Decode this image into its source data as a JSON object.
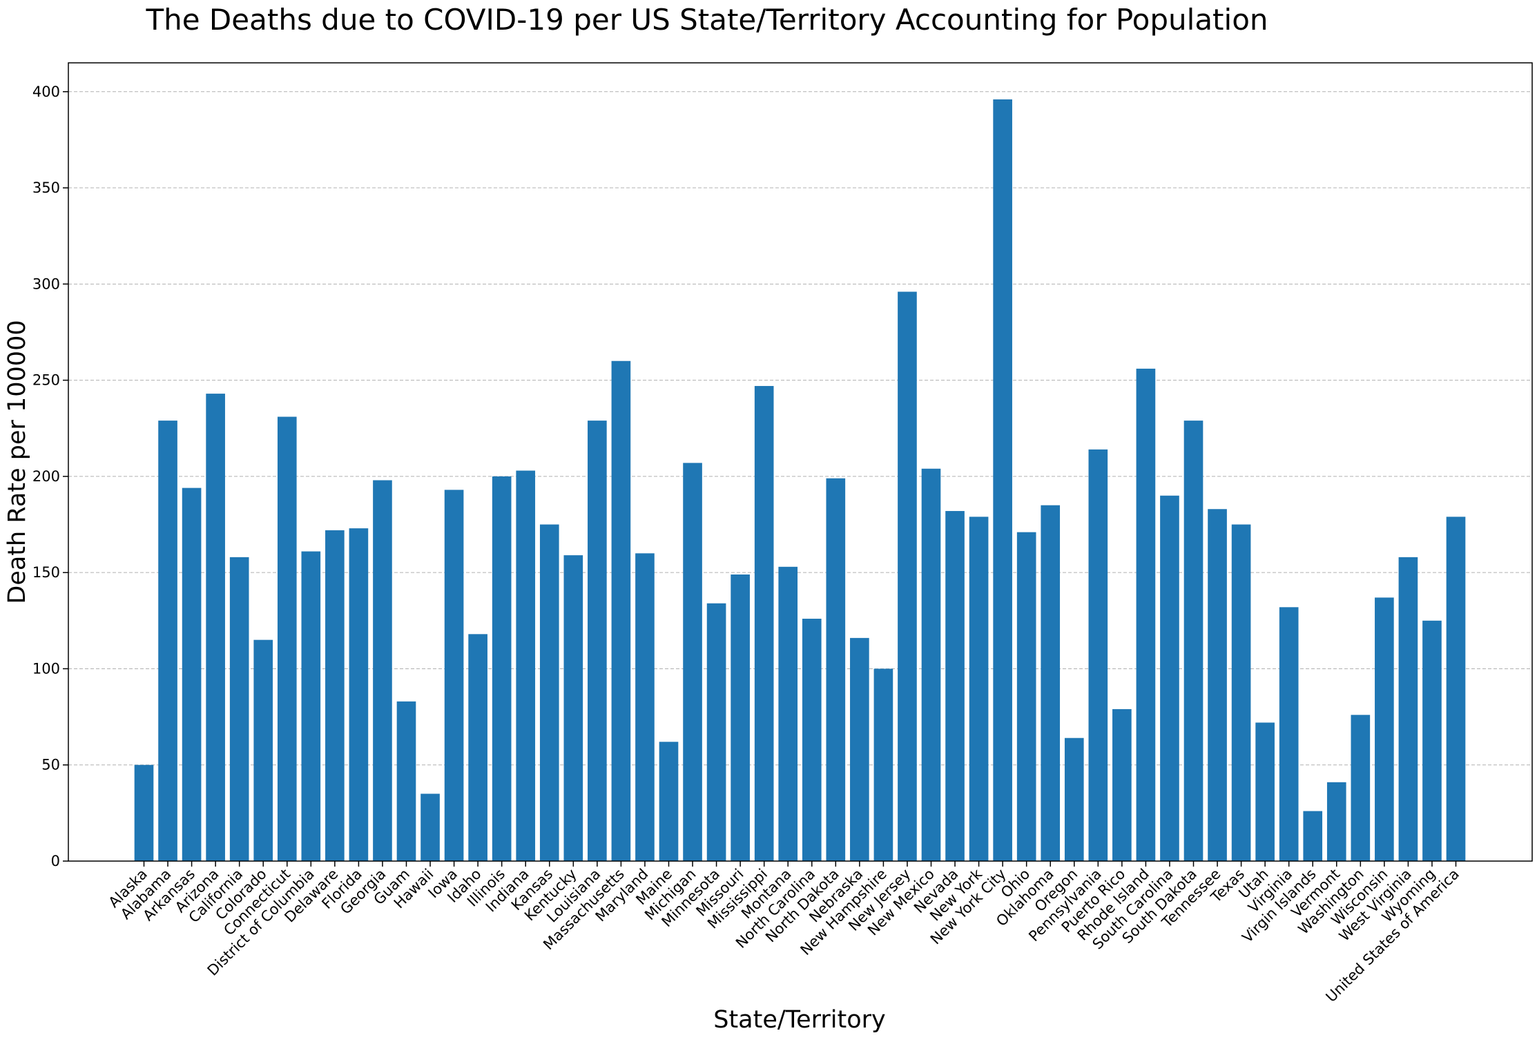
{
  "chart_data": {
    "type": "bar",
    "title": "The Deaths due to COVID-19 per US State/Territory Accounting for Population",
    "xlabel": "State/Territory",
    "ylabel": "Death Rate per 100000",
    "ylim": [
      0,
      415
    ],
    "yticks": [
      "0",
      "50",
      "100",
      "150",
      "200",
      "250",
      "300",
      "350",
      "400"
    ],
    "grid": "y-dashed",
    "bar_color": "#1f77b4",
    "categories": [
      "Alaska",
      "Alabama",
      "Arkansas",
      "Arizona",
      "California",
      "Colorado",
      "Connecticut",
      "District of Columbia",
      "Delaware",
      "Florida",
      "Georgia",
      "Guam",
      "Hawaii",
      "Iowa",
      "Idaho",
      "Illinois",
      "Indiana",
      "Kansas",
      "Kentucky",
      "Louisiana",
      "Massachusetts",
      "Maryland",
      "Maine",
      "Michigan",
      "Minnesota",
      "Missouri",
      "Mississippi",
      "Montana",
      "North Carolina",
      "North Dakota",
      "Nebraska",
      "New Hampshire",
      "New Jersey",
      "New Mexico",
      "Nevada",
      "New York",
      "New York City",
      "Ohio",
      "Oklahoma",
      "Oregon",
      "Pennsylvania",
      "Puerto Rico",
      "Rhode Island",
      "South Carolina",
      "South Dakota",
      "Tennessee",
      "Texas",
      "Utah",
      "Virginia",
      "Virgin Islands",
      "Vermont",
      "Washington",
      "Wisconsin",
      "West Virginia",
      "Wyoming",
      "United States of America"
    ],
    "values": [
      50,
      229,
      194,
      243,
      158,
      115,
      231,
      161,
      172,
      173,
      198,
      83,
      35,
      193,
      118,
      200,
      203,
      175,
      159,
      229,
      260,
      160,
      62,
      207,
      134,
      149,
      247,
      153,
      126,
      199,
      116,
      100,
      296,
      204,
      182,
      179,
      396,
      171,
      185,
      64,
      214,
      79,
      256,
      190,
      229,
      183,
      175,
      72,
      132,
      26,
      41,
      76,
      137,
      158,
      125,
      179
    ]
  }
}
